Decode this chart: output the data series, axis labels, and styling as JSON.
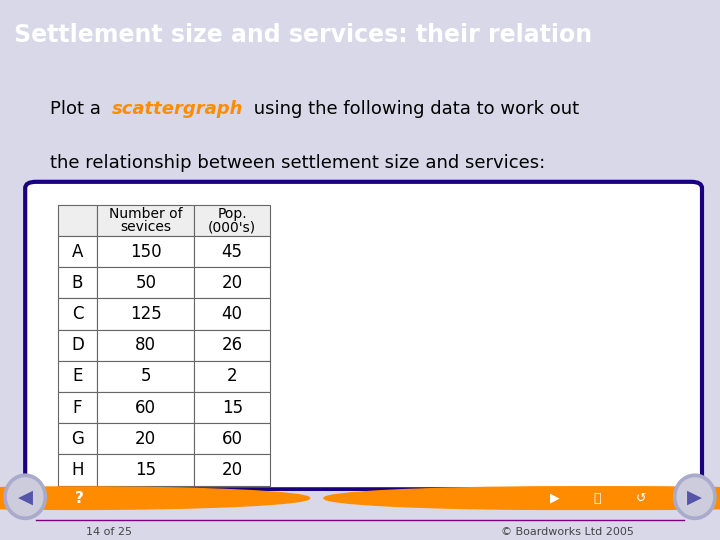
{
  "title": "Settlement size and services: their relation",
  "title_color": "#FFFFFF",
  "title_bg_color": "#1a0080",
  "body_bg_color": "#D8D8E8",
  "intro_line1_a": "Plot a ",
  "intro_line1_b": "scattergraph",
  "intro_line1_c": " using the following data to work out",
  "intro_line2": "the relationship between settlement size and services:",
  "orange_color": "#FF8C00",
  "table_header1": "Number of",
  "table_header1b": "sevices",
  "table_header2": "Pop.",
  "table_header2b": "(000's)",
  "table_rows": [
    [
      "A",
      "150",
      "45"
    ],
    [
      "B",
      "50",
      "20"
    ],
    [
      "C",
      "125",
      "40"
    ],
    [
      "D",
      "80",
      "26"
    ],
    [
      "E",
      "5",
      "2"
    ],
    [
      "F",
      "60",
      "15"
    ],
    [
      "G",
      "20",
      "60"
    ],
    [
      "H",
      "15",
      "20"
    ]
  ],
  "inner_box_bg": "#FFFFFF",
  "inner_box_border": "#1a0080",
  "footer_text": "14 of 25",
  "copyright_text": "© Boardworks Ltd 2005",
  "footer_bg": "#1a0080",
  "footer_line_color": "#800080"
}
